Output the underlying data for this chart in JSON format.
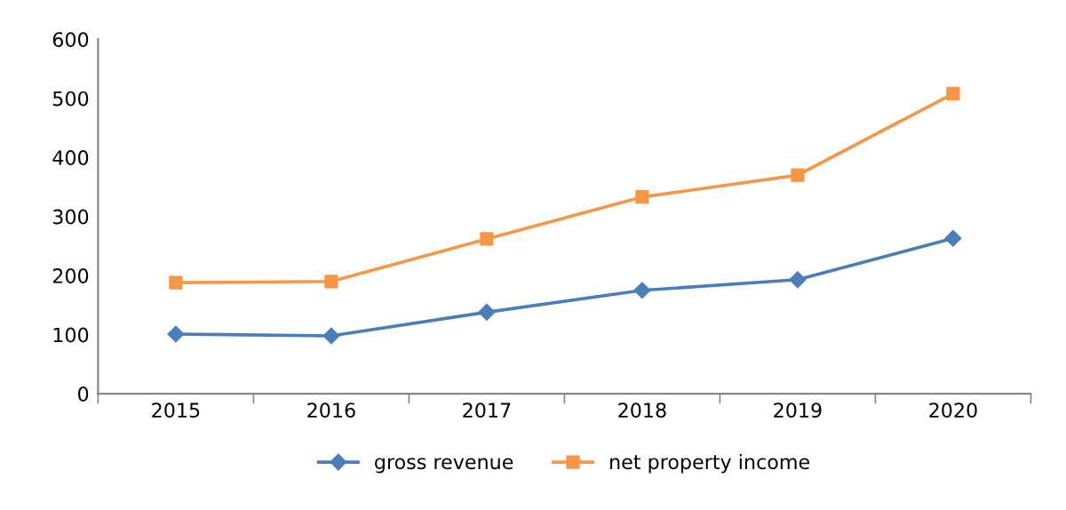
{
  "chart_data": {
    "type": "line",
    "categories": [
      "2015",
      "2016",
      "2017",
      "2018",
      "2019",
      "2020"
    ],
    "series": [
      {
        "name": "gross revenue",
        "color": "#4a7ebb",
        "marker": "diamond",
        "values": [
          101,
          98,
          138,
          175,
          193,
          263
        ]
      },
      {
        "name": "net property income",
        "color": "#f79646",
        "marker": "square",
        "values": [
          188,
          190,
          262,
          333,
          370,
          508
        ]
      }
    ],
    "ylim": [
      0,
      600
    ],
    "yticks": [
      0,
      100,
      200,
      300,
      400,
      500,
      600
    ],
    "grid": false,
    "legend": "bottom",
    "line_style": "solid"
  }
}
